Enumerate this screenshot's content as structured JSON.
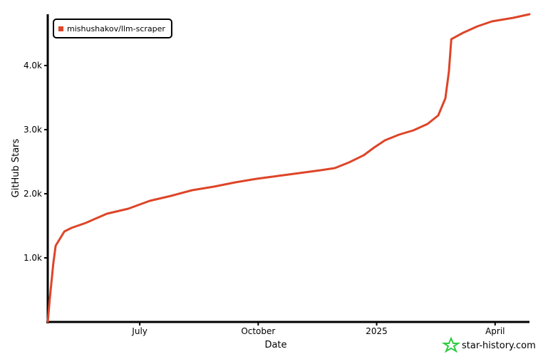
{
  "chart_data": {
    "type": "line",
    "x_label": "Date",
    "y_label": "GitHub Stars",
    "x": [
      4.67,
      4.72,
      4.81,
      4.87,
      5.09,
      5.27,
      5.63,
      6.17,
      6.71,
      7.25,
      7.79,
      8.33,
      8.88,
      9.42,
      9.96,
      10.5,
      11.04,
      11.58,
      11.94,
      12.3,
      12.67,
      12.94,
      13.21,
      13.57,
      13.93,
      14.29,
      14.56,
      14.74,
      14.83,
      14.89,
      15.19,
      15.55,
      15.92,
      16.46,
      16.87
    ],
    "series": [
      {
        "name": "mishushakov/llm-scraper",
        "color": "#dd4528",
        "values": [
          0,
          356,
          911,
          1189,
          1411,
          1467,
          1544,
          1689,
          1767,
          1889,
          1967,
          2056,
          2111,
          2178,
          2233,
          2278,
          2322,
          2367,
          2400,
          2489,
          2600,
          2722,
          2833,
          2922,
          2989,
          3089,
          3222,
          3489,
          3911,
          4411,
          4511,
          4611,
          4689,
          4744,
          4800
        ]
      }
    ],
    "xlim": [
      4.67,
      16.87
    ],
    "xticks": [
      {
        "value": 7,
        "label": "July"
      },
      {
        "value": 10,
        "label": "October"
      },
      {
        "value": 13,
        "label": "2025"
      },
      {
        "value": 16,
        "label": "April"
      }
    ],
    "ylim": [
      0,
      4800
    ],
    "yticks": [
      {
        "value": 1000,
        "label": "1.0k"
      },
      {
        "value": 2000,
        "label": "2.0k"
      },
      {
        "value": 3000,
        "label": "3.0k"
      },
      {
        "value": 4000,
        "label": "4.0k"
      }
    ],
    "legend": "upper left",
    "watermark": "star-history.com"
  }
}
